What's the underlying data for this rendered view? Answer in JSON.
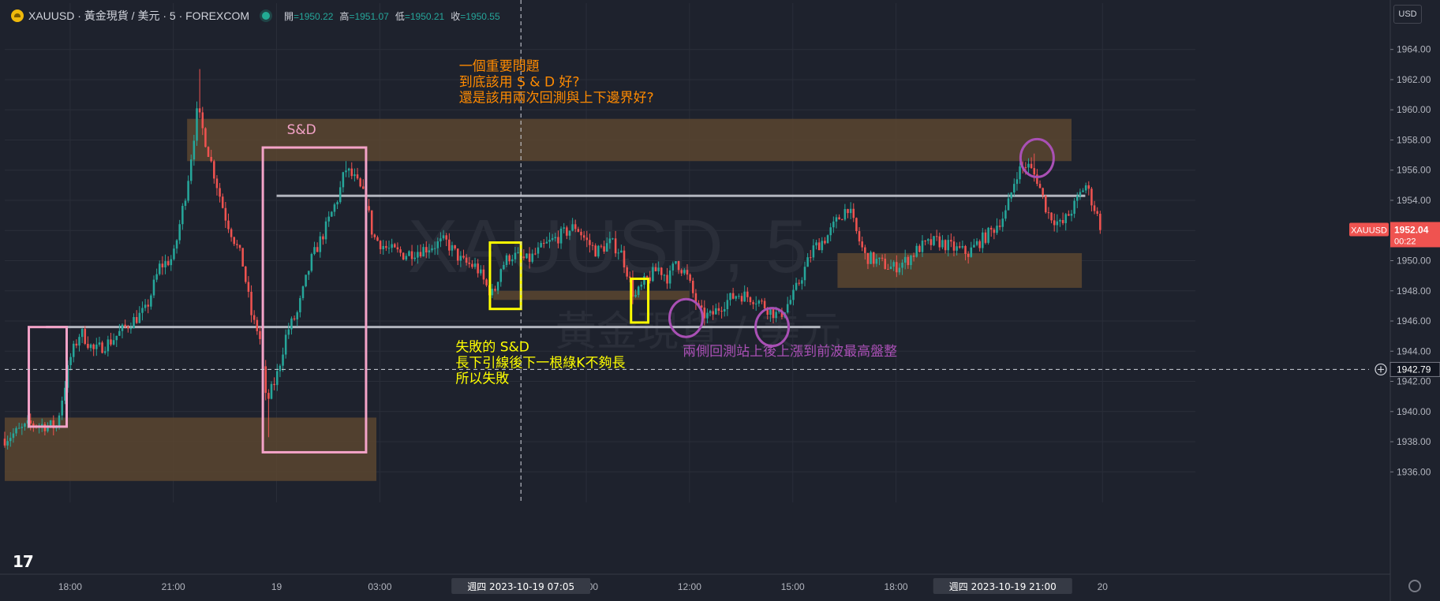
{
  "header": {
    "symbol": "XAUUSD · 黃金現貨 / 美元 · 5 · FOREXCOM",
    "open_label": "開",
    "open": "=1950.22",
    "high_label": "高",
    "high": "=1951.07",
    "low_label": "低",
    "low": "=1950.21",
    "close_label": "收",
    "close": "=1950.55"
  },
  "currency_button": "USD",
  "logo_text": "17",
  "watermark": {
    "line1": "XAUUSD, 5",
    "line2": "黃金現貨 / 美元"
  },
  "colors": {
    "background": "#1e222d",
    "up": "#26a69a",
    "down": "#ef5350",
    "zone": "#5a4530",
    "pink": "#f4a3c8",
    "yellow": "#ffff00",
    "purple": "#a950b5",
    "orange": "#ff8a00",
    "level": "#b2b5be"
  },
  "chart_data": {
    "type": "candlestick",
    "symbol": "XAUUSD",
    "timeframe": "5",
    "ylim": [
      1934.5,
      1965.5
    ],
    "y_ticks": [
      "1936.00",
      "1938.00",
      "1940.00",
      "1942.00",
      "1944.00",
      "1946.00",
      "1948.00",
      "1950.00",
      "1952.00",
      "1954.00",
      "1956.00",
      "1958.00",
      "1960.00",
      "1962.00",
      "1964.00"
    ],
    "x_ticks": [
      {
        "label": "18:00",
        "hour": 18
      },
      {
        "label": "21:00",
        "hour": 21
      },
      {
        "label": "19",
        "hour": 24
      },
      {
        "label": "03:00",
        "hour": 27
      },
      {
        "label": "09:00",
        "hour": 33
      },
      {
        "label": "12:00",
        "hour": 36
      },
      {
        "label": "15:00",
        "hour": 39
      },
      {
        "label": "18:00",
        "hour": 42
      },
      {
        "label": "20",
        "hour": 48
      }
    ],
    "x_range_hours": [
      16.1,
      50.7
    ],
    "time_labels": [
      {
        "text": "週四 2023-10-19   07:05",
        "hour": 31.1
      },
      {
        "text": "週四 2023-10-19   21:00",
        "hour": 45.1
      }
    ],
    "last_price": {
      "symbol": "XAUUSD",
      "value": "1952.04",
      "countdown": "00:22"
    },
    "crosshair": {
      "price": 1942.79,
      "label": "1942.79",
      "hour": 31.1
    },
    "path": [
      [
        16.1,
        1938.2
      ],
      [
        16.9,
        1939.2
      ],
      [
        17.6,
        1939.0
      ],
      [
        18.0,
        1943.5
      ],
      [
        18.3,
        1945.3
      ],
      [
        18.7,
        1944.0
      ],
      [
        19.2,
        1944.7
      ],
      [
        19.7,
        1945.8
      ],
      [
        20.2,
        1946.7
      ],
      [
        20.6,
        1949.6
      ],
      [
        21.0,
        1950.2
      ],
      [
        21.4,
        1955.0
      ],
      [
        21.7,
        1960.0
      ],
      [
        22.1,
        1956.5
      ],
      [
        22.5,
        1953.0
      ],
      [
        23.0,
        1950.0
      ],
      [
        23.3,
        1946.0
      ],
      [
        23.5,
        1945.2
      ],
      [
        23.7,
        1940.5
      ],
      [
        24.0,
        1942.3
      ],
      [
        24.3,
        1945.3
      ],
      [
        24.6,
        1946.5
      ],
      [
        25.0,
        1950.0
      ],
      [
        25.4,
        1952.0
      ],
      [
        25.8,
        1954.3
      ],
      [
        26.0,
        1956.1
      ],
      [
        26.3,
        1955.3
      ],
      [
        26.6,
        1954.0
      ],
      [
        26.8,
        1951.6
      ],
      [
        27.2,
        1950.8
      ],
      [
        27.7,
        1950.4
      ],
      [
        28.3,
        1950.8
      ],
      [
        28.9,
        1951.3
      ],
      [
        29.4,
        1949.9
      ],
      [
        29.8,
        1949.6
      ],
      [
        30.1,
        1948.3
      ],
      [
        30.3,
        1947.7
      ],
      [
        30.5,
        1949.5
      ],
      [
        30.8,
        1950.4
      ],
      [
        31.3,
        1950.0
      ],
      [
        31.8,
        1951.0
      ],
      [
        32.2,
        1951.6
      ],
      [
        32.7,
        1952.3
      ],
      [
        33.0,
        1951.3
      ],
      [
        33.3,
        1950.6
      ],
      [
        33.7,
        1951.2
      ],
      [
        34.0,
        1950.6
      ],
      [
        34.2,
        1949.2
      ],
      [
        34.4,
        1947.5
      ],
      [
        34.7,
        1948.6
      ],
      [
        35.1,
        1949.5
      ],
      [
        35.4,
        1948.8
      ],
      [
        35.6,
        1950.0
      ],
      [
        35.9,
        1949.1
      ],
      [
        36.1,
        1947.8
      ],
      [
        36.3,
        1946.5
      ],
      [
        36.6,
        1946.3
      ],
      [
        37.0,
        1947.2
      ],
      [
        37.4,
        1947.8
      ],
      [
        37.9,
        1947.5
      ],
      [
        38.3,
        1946.8
      ],
      [
        38.6,
        1946.3
      ],
      [
        39.0,
        1947.6
      ],
      [
        39.3,
        1949.2
      ],
      [
        39.6,
        1950.8
      ],
      [
        40.0,
        1951.6
      ],
      [
        40.3,
        1952.7
      ],
      [
        40.6,
        1953.6
      ],
      [
        40.9,
        1951.5
      ],
      [
        41.1,
        1950.3
      ],
      [
        41.5,
        1949.9
      ],
      [
        41.9,
        1949.5
      ],
      [
        42.3,
        1950.0
      ],
      [
        42.7,
        1950.9
      ],
      [
        43.2,
        1951.3
      ],
      [
        43.7,
        1950.8
      ],
      [
        44.1,
        1950.5
      ],
      [
        44.4,
        1951.2
      ],
      [
        44.8,
        1952.0
      ],
      [
        45.2,
        1953.2
      ],
      [
        45.5,
        1955.8
      ],
      [
        45.8,
        1956.4
      ],
      [
        46.1,
        1955.4
      ],
      [
        46.4,
        1953.2
      ],
      [
        46.8,
        1952.3
      ],
      [
        47.2,
        1953.7
      ],
      [
        47.5,
        1955.1
      ],
      [
        47.8,
        1953.3
      ],
      [
        48.0,
        1951.9
      ]
    ],
    "extremes": [
      {
        "hour": 21.8,
        "price": 1962.7
      },
      {
        "hour": 23.8,
        "price": 1938.3
      },
      {
        "hour": 26.0,
        "price": 1956.6
      },
      {
        "hour": 46.0,
        "price": 1957.1
      }
    ],
    "zones": [
      {
        "t1": 21.4,
        "t2": 47.1,
        "p1": 1956.6,
        "p2": 1959.4
      },
      {
        "t1": 16.1,
        "t2": 26.9,
        "p1": 1935.4,
        "p2": 1939.6
      },
      {
        "t1": 30.3,
        "t2": 36.0,
        "p1": 1947.4,
        "p2": 1948.0
      },
      {
        "t1": 40.3,
        "t2": 47.4,
        "p1": 1948.2,
        "p2": 1950.5
      }
    ],
    "levels": [
      {
        "price": 1954.3,
        "t1": 24.0,
        "t2": 47.5
      },
      {
        "price": 1945.6,
        "t1": 17.3,
        "t2": 39.8
      }
    ],
    "pink_boxes": [
      {
        "t1": 16.8,
        "t2": 17.9,
        "p1": 1939.0,
        "p2": 1945.6
      },
      {
        "t1": 23.6,
        "t2": 26.6,
        "p1": 1937.3,
        "p2": 1957.5
      }
    ],
    "yellow_boxes": [
      {
        "t1": 30.2,
        "t2": 31.1,
        "p1": 1946.8,
        "p2": 1951.2
      },
      {
        "t1": 34.3,
        "t2": 34.8,
        "p1": 1945.9,
        "p2": 1948.8
      }
    ],
    "circles": [
      {
        "hour": 35.9,
        "price": 1946.2
      },
      {
        "hour": 38.4,
        "price": 1945.6
      },
      {
        "hour": 46.1,
        "price": 1956.8
      }
    ],
    "annotations": [
      {
        "id": "question",
        "color": "orange",
        "hour": 29.3,
        "price": 1962.6,
        "lines": [
          "一個重要問題",
          "到底該用 S & D 好?",
          "還是該用兩次回測與上下邊界好?"
        ]
      },
      {
        "id": "sd_label",
        "color": "pink",
        "hour": 24.3,
        "price": 1958.4,
        "lines": [
          "S&D"
        ]
      },
      {
        "id": "failed",
        "color": "yellow",
        "hour": 29.2,
        "price": 1944.0,
        "lines": [
          "失敗的 S&D",
          "長下引線後下一根綠K不夠長",
          "所以失敗"
        ]
      },
      {
        "id": "retest",
        "color": "purple",
        "hour": 35.8,
        "price": 1943.7,
        "lines": [
          "兩側回測站上後上漲到前波最高盤整"
        ]
      }
    ]
  }
}
